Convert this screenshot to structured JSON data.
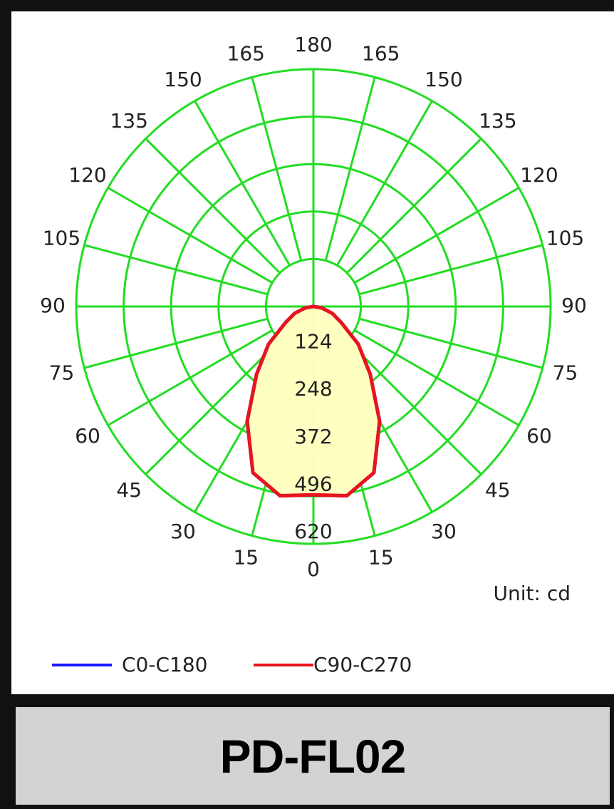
{
  "chart_data": {
    "type": "polar",
    "unit_label": "Unit: cd",
    "caption": "PD-FL02",
    "rlim": [
      0,
      620
    ],
    "rticks": [
      124,
      248,
      372,
      496,
      620
    ],
    "angle_ticks": [
      0,
      15,
      30,
      45,
      60,
      75,
      90,
      105,
      120,
      135,
      150,
      165,
      180
    ],
    "grid_color": "#22dd22",
    "x": [
      -90,
      -80,
      -70,
      -60,
      -50,
      -40,
      -30,
      -20,
      -10,
      0,
      10,
      20,
      30,
      40,
      50,
      60,
      70,
      80,
      90
    ],
    "series": [
      {
        "name": "C0-C180",
        "color": "#1a1aff",
        "values": [
          0,
          22,
          52,
          84,
          153,
          231,
          346,
          462,
          502,
          492,
          502,
          462,
          346,
          231,
          153,
          84,
          52,
          22,
          0
        ]
      },
      {
        "name": "C90-C270",
        "color": "#e8141e",
        "values": [
          0,
          22,
          52,
          84,
          153,
          231,
          346,
          462,
          502,
          492,
          502,
          462,
          346,
          231,
          153,
          84,
          52,
          22,
          0
        ]
      }
    ],
    "fill": "#ffffc0"
  }
}
